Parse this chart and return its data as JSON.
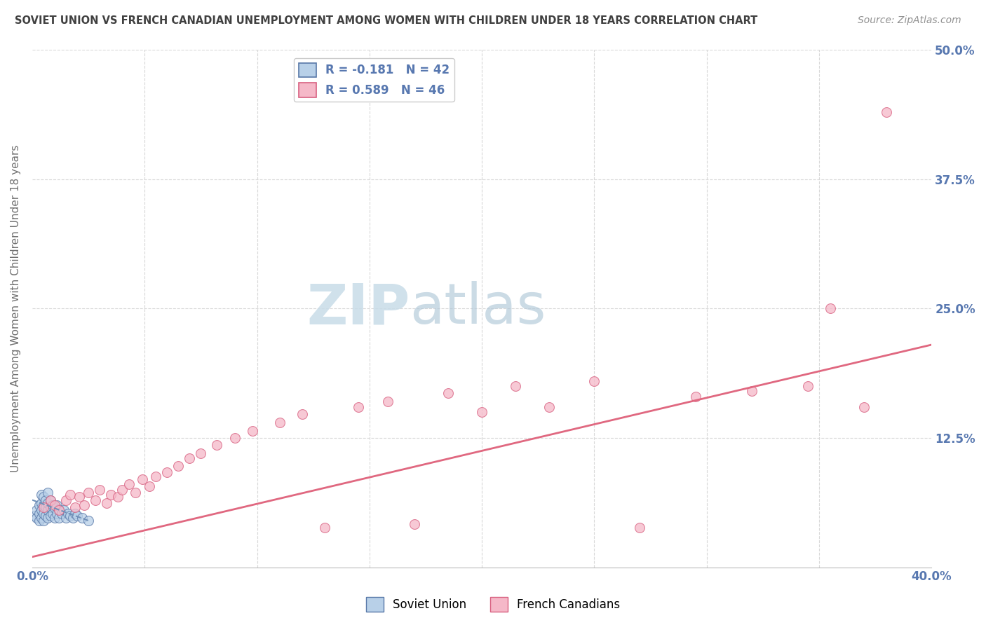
{
  "title": "SOVIET UNION VS FRENCH CANADIAN UNEMPLOYMENT AMONG WOMEN WITH CHILDREN UNDER 18 YEARS CORRELATION CHART",
  "source": "Source: ZipAtlas.com",
  "ylabel": "Unemployment Among Women with Children Under 18 years",
  "xlim": [
    0.0,
    0.4
  ],
  "ylim": [
    0.0,
    0.5
  ],
  "ytick_labels_right": [
    "",
    "12.5%",
    "25.0%",
    "37.5%",
    "50.0%"
  ],
  "xtick_labels": [
    "0.0%",
    "",
    "",
    "",
    "",
    "",
    "",
    "",
    "40.0%"
  ],
  "watermark_zip": "ZIP",
  "watermark_atlas": "atlas",
  "legend_blue_label": "R = -0.181   N = 42",
  "legend_pink_label": "R = 0.589   N = 46",
  "legend_blue_label1": "Soviet Union",
  "legend_pink_label1": "French Canadians",
  "blue_fill": "#b8d0e8",
  "pink_fill": "#f5b8c8",
  "blue_edge": "#5878a8",
  "pink_edge": "#d86080",
  "pink_line": "#e06880",
  "blue_line": "#7090b8",
  "axis_label_color": "#5878b0",
  "grid_color": "#d8d8d8",
  "soviet_x": [
    0.001,
    0.002,
    0.002,
    0.003,
    0.003,
    0.003,
    0.004,
    0.004,
    0.004,
    0.004,
    0.005,
    0.005,
    0.005,
    0.005,
    0.006,
    0.006,
    0.006,
    0.007,
    0.007,
    0.007,
    0.007,
    0.008,
    0.008,
    0.008,
    0.009,
    0.009,
    0.01,
    0.01,
    0.011,
    0.011,
    0.012,
    0.012,
    0.013,
    0.014,
    0.015,
    0.016,
    0.017,
    0.018,
    0.019,
    0.02,
    0.022,
    0.025
  ],
  "soviet_y": [
    0.05,
    0.048,
    0.055,
    0.045,
    0.052,
    0.06,
    0.048,
    0.055,
    0.062,
    0.07,
    0.045,
    0.052,
    0.06,
    0.068,
    0.05,
    0.058,
    0.065,
    0.048,
    0.055,
    0.062,
    0.072,
    0.05,
    0.058,
    0.065,
    0.052,
    0.06,
    0.048,
    0.057,
    0.052,
    0.06,
    0.048,
    0.056,
    0.052,
    0.055,
    0.048,
    0.052,
    0.05,
    0.048,
    0.052,
    0.05,
    0.048,
    0.045
  ],
  "french_x": [
    0.005,
    0.008,
    0.01,
    0.012,
    0.015,
    0.017,
    0.019,
    0.021,
    0.023,
    0.025,
    0.028,
    0.03,
    0.033,
    0.035,
    0.038,
    0.04,
    0.043,
    0.046,
    0.049,
    0.052,
    0.055,
    0.06,
    0.065,
    0.07,
    0.075,
    0.082,
    0.09,
    0.098,
    0.11,
    0.12,
    0.13,
    0.145,
    0.158,
    0.17,
    0.185,
    0.2,
    0.215,
    0.23,
    0.25,
    0.27,
    0.295,
    0.32,
    0.345,
    0.355,
    0.37,
    0.38
  ],
  "french_y": [
    0.058,
    0.065,
    0.06,
    0.055,
    0.065,
    0.07,
    0.058,
    0.068,
    0.06,
    0.072,
    0.065,
    0.075,
    0.062,
    0.07,
    0.068,
    0.075,
    0.08,
    0.072,
    0.085,
    0.078,
    0.088,
    0.092,
    0.098,
    0.105,
    0.11,
    0.118,
    0.125,
    0.132,
    0.14,
    0.148,
    0.038,
    0.155,
    0.16,
    0.042,
    0.168,
    0.15,
    0.175,
    0.155,
    0.18,
    0.038,
    0.165,
    0.17,
    0.175,
    0.25,
    0.155,
    0.44
  ],
  "pink_trend_x": [
    0.0,
    0.4
  ],
  "pink_trend_y": [
    0.01,
    0.215
  ],
  "blue_trend_x": [
    0.0,
    0.025
  ],
  "blue_trend_y": [
    0.065,
    0.045
  ]
}
